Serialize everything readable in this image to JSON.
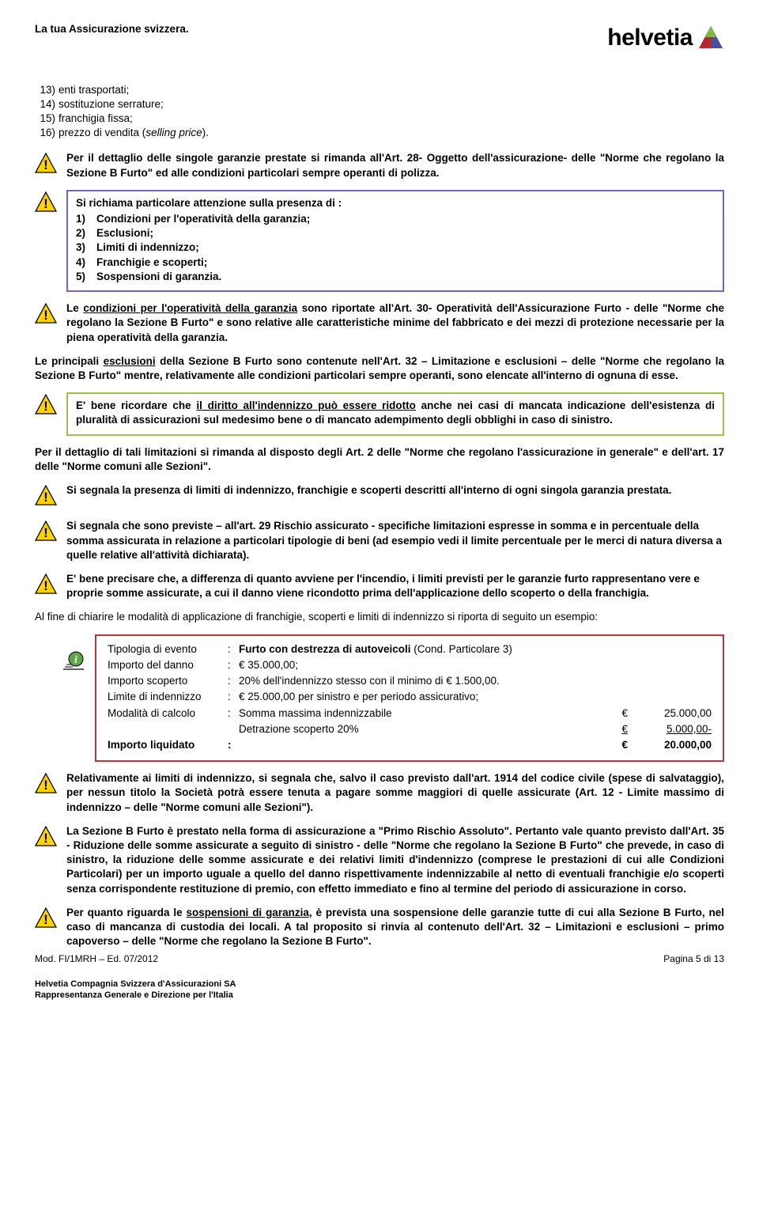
{
  "header": {
    "tagline": "La tua Assicurazione svizzera.",
    "logoText": "helvetia",
    "logoColors": {
      "a": "#b4282e",
      "b": "#7dbb42",
      "c": "#4a4f9b"
    }
  },
  "topList": [
    {
      "num": "13)",
      "text": "enti trasportati;"
    },
    {
      "num": "14)",
      "text": "sostituzione serrature;"
    },
    {
      "num": "15)",
      "text": "franchigia fissa;"
    },
    {
      "num": "16)",
      "text_html": "prezzo di vendita (<span class='italic'>selling price</span>)."
    }
  ],
  "block1": "Per il dettaglio delle singole garanzie prestate si rimanda all'Art. 28- Oggetto dell'assicurazione- delle \"Norme che regolano la Sezione B Furto\" ed alle condizioni particolari sempre operanti di polizza.",
  "block2": {
    "intro": "Si richiama particolare attenzione sulla presenza di :",
    "items": [
      {
        "n": "1)",
        "t": "Condizioni per l'operatività della garanzia;"
      },
      {
        "n": "2)",
        "t": "Esclusioni;"
      },
      {
        "n": "3)",
        "t": "Limiti di indennizzo;"
      },
      {
        "n": "4)",
        "t": "Franchigie e scoperti;"
      },
      {
        "n": "5)",
        "t": "Sospensioni di garanzia."
      }
    ]
  },
  "block3_html": "Le <span class='ul'>condizioni per l'operatività della garanzia</span> sono riportate all'Art. 30- Operatività dell'Assicurazione Furto - delle \"Norme che regolano la Sezione B Furto\" e sono relative alle caratteristiche minime del fabbricato e dei mezzi di protezione necessarie per la piena operatività della garanzia.",
  "para1_html": "Le principali <span class='ul'>esclusioni</span> della Sezione B Furto sono contenute nell'Art. 32 – Limitazione e esclusioni – delle \"Norme che regolano la Sezione B Furto\" mentre, relativamente alle condizioni particolari sempre operanti, sono elencate all'interno di ognuna di esse.",
  "block4_html": "E' bene ricordare che <span class='ul'>il diritto all'indennizzo può essere ridotto</span> anche nei casi di <span>mancata indicazione dell'esistenza di pluralità di assicurazioni sul medesimo bene o di mancato adempimento degli obblighi in caso di sinistro.</span>",
  "para2": "Per il dettaglio di tali limitazioni si rimanda al disposto degli Art. 2 delle \"Norme che regolano l'assicurazione in generale\" e dell'art. 17 delle \"Norme comuni alle Sezioni\".",
  "block5": "Si segnala la presenza di limiti di indennizzo, franchigie e scoperti descritti all'interno di ogni singola garanzia prestata.",
  "block6": "Si segnala che sono previste – all'art. 29 Rischio assicurato - specifiche limitazioni espresse in somma e in percentuale della somma assicurata in relazione a particolari tipologie di beni (ad esempio vedi il limite percentuale per le merci di natura diversa a quelle relative all'attività dichiarata).",
  "block7": "E' bene precisare che, a differenza di quanto avviene per l'incendio, i limiti previsti per le garanzie furto rappresentano vere e proprie somme assicurate, a cui il danno viene ricondotto prima dell'applicazione dello scoperto o della franchigia.",
  "para3": "Al fine di chiarire le modalità di applicazione di franchigie, scoperti e limiti di indennizzo si riporta di seguito un esempio:",
  "example": {
    "rows": [
      {
        "label": "Tipologia di evento",
        "value_html": "<span class='bold'>Furto con destrezza di autoveicoli</span> (Cond. Particolare 3)"
      },
      {
        "label": "Importo del danno",
        "value_html": "€ 35.000,00;"
      },
      {
        "label": "Importo scoperto",
        "value_html": "20% dell'indennizzo stesso con il minimo di € 1.500,00."
      },
      {
        "label": "Limite di indennizzo",
        "value_html": "€ 25.000,00 per sinistro e per periodo assicurativo;"
      }
    ],
    "calcLabel": "Modalità di calcolo",
    "calc1": {
      "label": "Somma massima indennizzabile",
      "eur": "€",
      "amt": "25.000,00"
    },
    "calc2": {
      "label": "Detrazione scoperto 20%",
      "eur": "€",
      "amt": "5.000,00-"
    },
    "totLabel": "Importo liquidato",
    "totColon": ":",
    "totEur": "€",
    "totAmt": "20.000,00"
  },
  "block8": "Relativamente ai limiti di indennizzo, si segnala che, salvo il caso previsto dall'art. 1914 del codice civile (spese di salvataggio), per nessun titolo la Società potrà essere tenuta a pagare somme maggiori di quelle assicurate (Art. 12 - Limite massimo di indennizzo – delle \"Norme comuni alle Sezioni\").",
  "block9": "La Sezione B Furto è prestato nella forma di assicurazione a \"Primo Rischio Assoluto\". Pertanto vale quanto previsto dall'Art. 35 - Riduzione delle somme assicurate a seguito di sinistro - delle \"Norme che regolano la Sezione B Furto\" che prevede, in caso di sinistro,  la riduzione delle somme assicurate e dei relativi limiti d'indennizzo (comprese le prestazioni di cui alle Condizioni Particolari) per un importo uguale a quello del danno rispettivamente indennizzabile al netto di eventuali franchigie e/o scoperti senza corrispondente restituzione di premio, con effetto immediato e fino al termine del periodo di assicurazione in corso.",
  "block10_html": "Per quanto riguarda le <span class='ul'>sospensioni di garanzia</span>, è prevista una sospensione delle garanzie tutte di cui alla Sezione B Furto, nel caso di mancanza di custodia dei locali. A tal proposito si rinvia al contenuto dell'Art. 32 – Limitazioni e esclusioni – primo capoverso – delle \"Norme che regolano la Sezione B Furto\".",
  "footer": {
    "docId": "Mod. FI/1MRH – Ed. 07/2012",
    "pageInfo": "Pagina 5 di 13",
    "company1": "Helvetia Compagnia Svizzera d'Assicurazioni SA",
    "company2": "Rappresentanza Generale e Direzione per l'Italia"
  },
  "infoIconColor": "#5fa648"
}
